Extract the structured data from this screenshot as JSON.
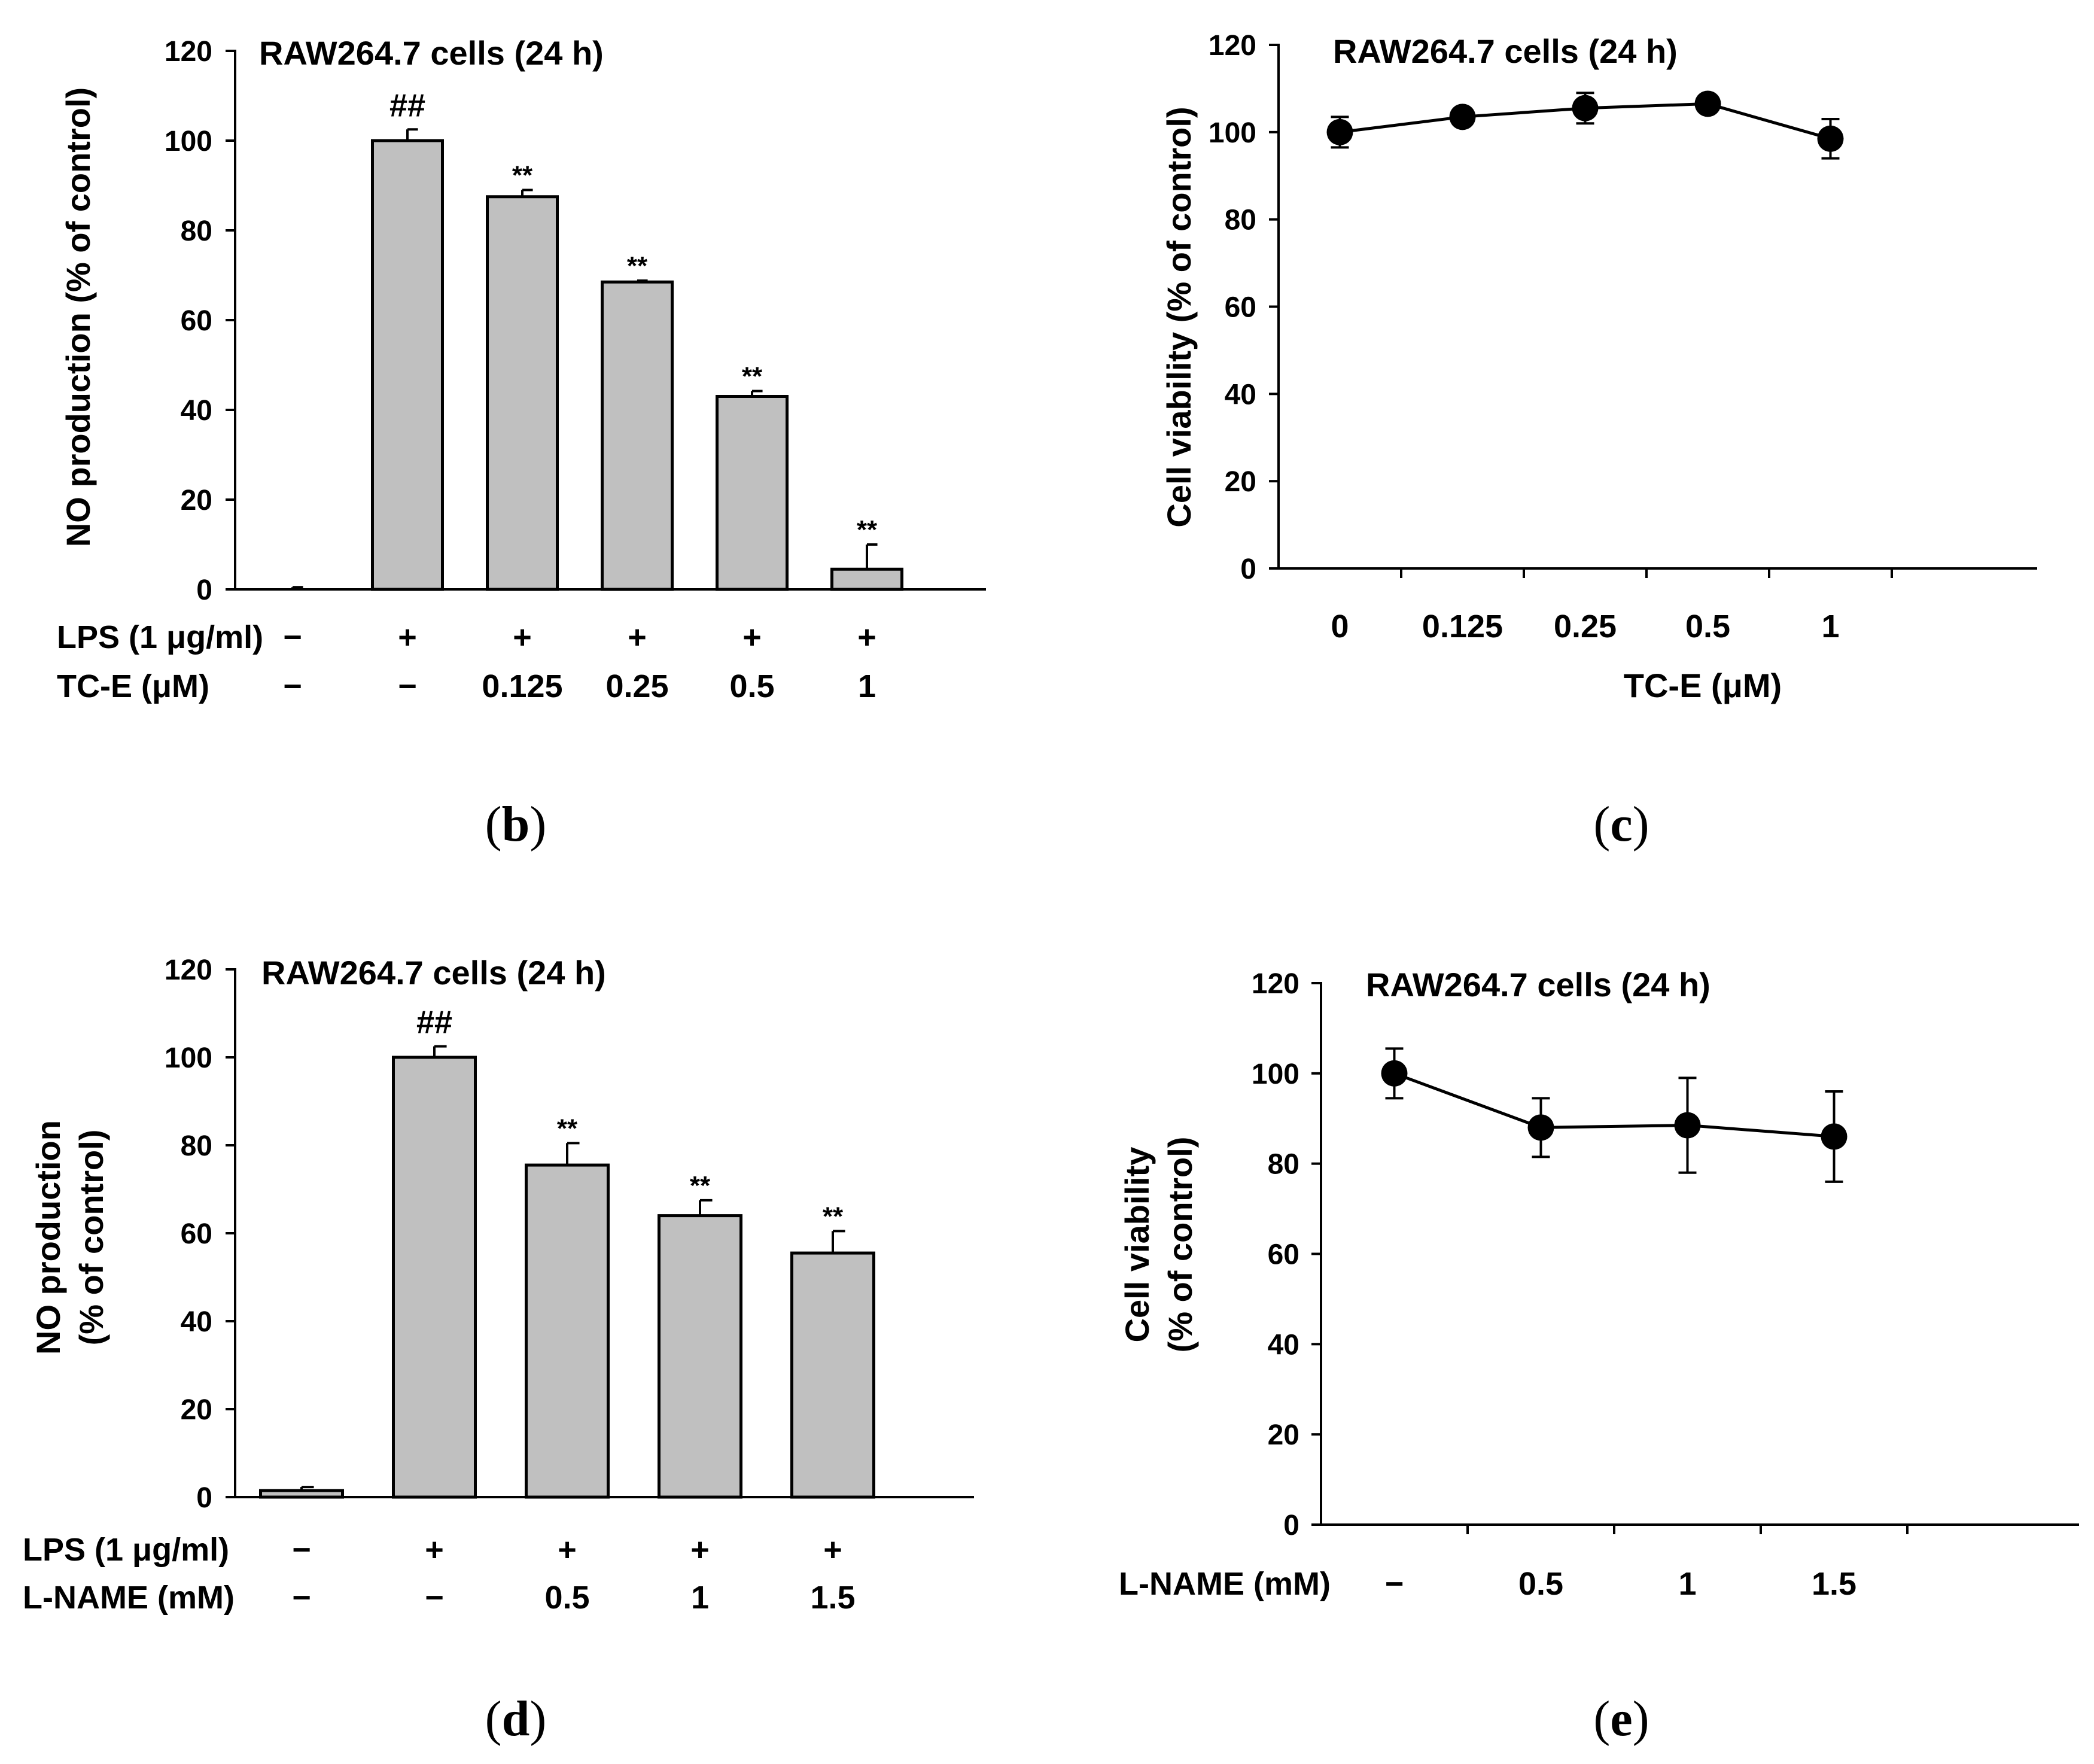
{
  "colors": {
    "bar_fill": "#c0c0c0",
    "ink": "#000000",
    "background": "#ffffff"
  },
  "chart_data": [
    {
      "id": "b",
      "type": "bar",
      "panel_label": "b",
      "title": "RAW264.7 cells (24 h)",
      "ylabel": [
        "NO production (% of control)"
      ],
      "xlabel": "",
      "ylim": [
        0,
        120
      ],
      "yticks": [
        0,
        20,
        40,
        60,
        80,
        100,
        120
      ],
      "values": [
        0,
        100,
        87.5,
        68.5,
        43,
        4.5
      ],
      "errors": [
        0.5,
        2.5,
        1.5,
        0.3,
        1.2,
        5.5
      ],
      "significance": [
        "",
        "##",
        "**",
        "**",
        "**",
        "**"
      ],
      "row_labels": [
        "LPS (1 μg/ml)",
        "TC-E (μM)"
      ],
      "rows": [
        [
          "−",
          "+",
          "+",
          "+",
          "+",
          "+"
        ],
        [
          "−",
          "−",
          "0.125",
          "0.25",
          "0.5",
          "1"
        ]
      ]
    },
    {
      "id": "c",
      "type": "line",
      "panel_label": "c",
      "title": "RAW264.7 cells (24 h)",
      "ylabel": [
        "Cell viability (% of control)"
      ],
      "xlabel": "TC-E (μM)",
      "ylim": [
        0,
        120
      ],
      "yticks": [
        0,
        20,
        40,
        60,
        80,
        100,
        120
      ],
      "categories": [
        "0",
        "0.125",
        "0.25",
        "0.5",
        "1"
      ],
      "values": [
        100,
        103.5,
        105.5,
        106.5,
        98.5
      ],
      "errors": [
        3.5,
        1.5,
        3.5,
        1.5,
        4.5
      ],
      "x_slots": 6
    },
    {
      "id": "d",
      "type": "bar",
      "panel_label": "d",
      "title": "RAW264.7 cells (24 h)",
      "ylabel": [
        "NO production",
        "(% of control)"
      ],
      "xlabel": "",
      "ylim": [
        0,
        120
      ],
      "yticks": [
        0,
        20,
        40,
        60,
        80,
        100,
        120
      ],
      "values": [
        1.5,
        100,
        75.5,
        64,
        55.5
      ],
      "errors": [
        0.8,
        2.5,
        5,
        3.5,
        5
      ],
      "significance": [
        "",
        "##",
        "**",
        "**",
        "**"
      ],
      "row_labels": [
        "LPS (1 μg/ml)",
        "L-NAME (mM)"
      ],
      "rows": [
        [
          "−",
          "+",
          "+",
          "+",
          "+"
        ],
        [
          "−",
          "−",
          "0.5",
          "1",
          "1.5"
        ]
      ]
    },
    {
      "id": "e",
      "type": "line",
      "panel_label": "e",
      "title": "RAW264.7 cells (24 h)",
      "ylabel": [
        "Cell viability",
        "(% of control)"
      ],
      "xlabel": "",
      "ylim": [
        0,
        120
      ],
      "yticks": [
        0,
        20,
        40,
        60,
        80,
        100,
        120
      ],
      "categories": [
        "−",
        "0.5",
        "1",
        "1.5"
      ],
      "values": [
        100,
        88,
        88.5,
        86
      ],
      "errors": [
        5.5,
        6.5,
        10.5,
        10
      ],
      "x_slots": 5,
      "row_label": "L-NAME (mM)"
    }
  ]
}
